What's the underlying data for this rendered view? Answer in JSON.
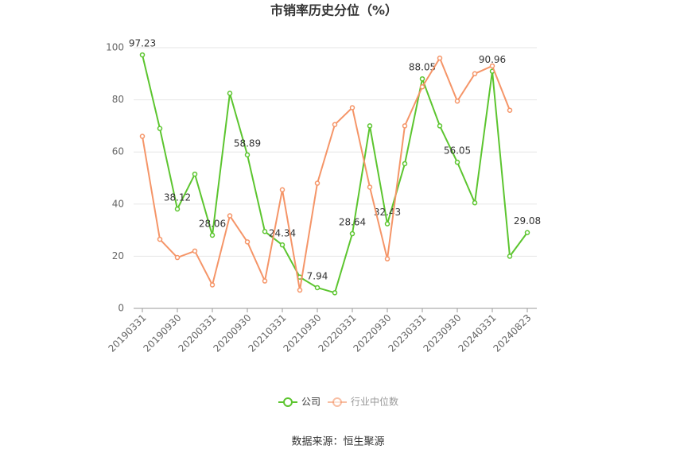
{
  "chart_data": {
    "type": "line",
    "title": "市销率历史分位（%）",
    "categories": [
      "20190331",
      null,
      "20190930",
      null,
      "20200331",
      null,
      "20200930",
      null,
      "20210331",
      null,
      "20210930",
      null,
      "20220331",
      null,
      "20220930",
      null,
      "20230331",
      null,
      "20230930",
      null,
      "20240331",
      null,
      "20240823"
    ],
    "series": [
      {
        "name": "公司",
        "color": "#5cc52f",
        "values": [
          97.23,
          69,
          38.12,
          51.5,
          28.06,
          82.5,
          58.89,
          29.5,
          24.34,
          12,
          7.94,
          6,
          28.64,
          70,
          32.43,
          55.5,
          88.05,
          70,
          56.05,
          40.5,
          90.96,
          20,
          29.08
        ],
        "value_labels": [
          "97.23",
          null,
          "38.12",
          null,
          "28.06",
          null,
          "58.89",
          null,
          "24.34",
          null,
          "7.94",
          null,
          "28.64",
          null,
          "32.43",
          null,
          "88.05",
          null,
          "56.05",
          null,
          "90.96",
          null,
          "29.08"
        ]
      },
      {
        "name": "行业中位数",
        "color": "#f59568",
        "values": [
          66,
          26.5,
          19.5,
          22,
          9,
          35.5,
          25.5,
          10.5,
          45.5,
          7,
          48,
          70.5,
          77,
          46.5,
          19,
          70,
          85,
          96,
          79.5,
          90,
          93,
          76,
          null
        ]
      }
    ],
    "ylim": [
      0,
      100
    ],
    "yticks": [
      0,
      20,
      40,
      60,
      80,
      100
    ],
    "grid": true,
    "legend": "bottom",
    "source": "数据来源：恒生聚源"
  }
}
